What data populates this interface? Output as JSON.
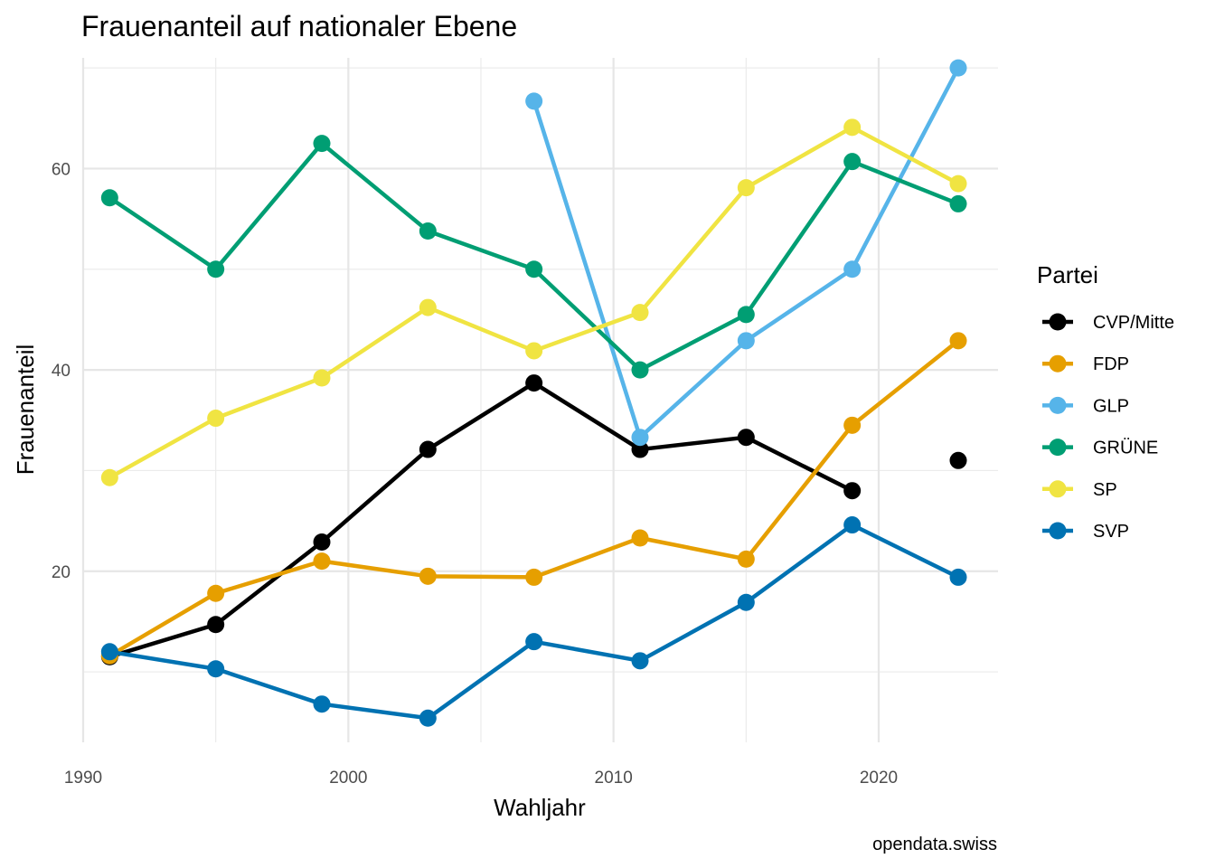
{
  "chart_data": {
    "type": "line",
    "title": "Frauenanteil auf nationaler Ebene",
    "xlabel": "Wahljahr",
    "ylabel": "Frauenanteil",
    "caption": "opendata.swiss",
    "legend_title": "Partei",
    "legend_position": "right",
    "grid": true,
    "xlim": [
      1990,
      2024.5
    ],
    "ylim": [
      3,
      71
    ],
    "x_ticks": [
      1990,
      2000,
      2010,
      2020
    ],
    "y_ticks": [
      20,
      40,
      60
    ],
    "series": [
      {
        "name": "CVP/Mitte",
        "color": "#000000",
        "x": [
          1991,
          1995,
          1999,
          2003,
          2007,
          2011,
          2015,
          2019,
          2023
        ],
        "y": [
          11.5,
          14.7,
          22.9,
          32.1,
          38.7,
          32.1,
          33.3,
          28.0,
          31.0
        ],
        "break_before_index": 8
      },
      {
        "name": "FDP",
        "color": "#E69F00",
        "x": [
          1991,
          1995,
          1999,
          2003,
          2007,
          2011,
          2015,
          2019,
          2023
        ],
        "y": [
          11.6,
          17.8,
          21.0,
          19.5,
          19.4,
          23.3,
          21.2,
          34.5,
          42.9
        ]
      },
      {
        "name": "GLP",
        "color": "#56B4E9",
        "x": [
          2007,
          2011,
          2015,
          2019,
          2023
        ],
        "y": [
          66.7,
          33.3,
          42.9,
          50.0,
          70.0
        ]
      },
      {
        "name": "GRÜNE",
        "color": "#009E73",
        "x": [
          1991,
          1995,
          1999,
          2003,
          2007,
          2011,
          2015,
          2019,
          2023
        ],
        "y": [
          57.1,
          50.0,
          62.5,
          53.8,
          50.0,
          40.0,
          45.5,
          60.7,
          56.5
        ]
      },
      {
        "name": "SP",
        "color": "#F0E442",
        "x": [
          1991,
          1995,
          1999,
          2003,
          2007,
          2011,
          2015,
          2019,
          2023
        ],
        "y": [
          29.3,
          35.2,
          39.2,
          46.2,
          41.9,
          45.7,
          58.1,
          64.1,
          58.5
        ]
      },
      {
        "name": "SVP",
        "color": "#0072B2",
        "x": [
          1991,
          1995,
          1999,
          2003,
          2007,
          2011,
          2015,
          2019,
          2023
        ],
        "y": [
          12.0,
          10.3,
          6.8,
          5.4,
          13.0,
          11.1,
          16.9,
          24.6,
          19.4
        ]
      }
    ]
  }
}
